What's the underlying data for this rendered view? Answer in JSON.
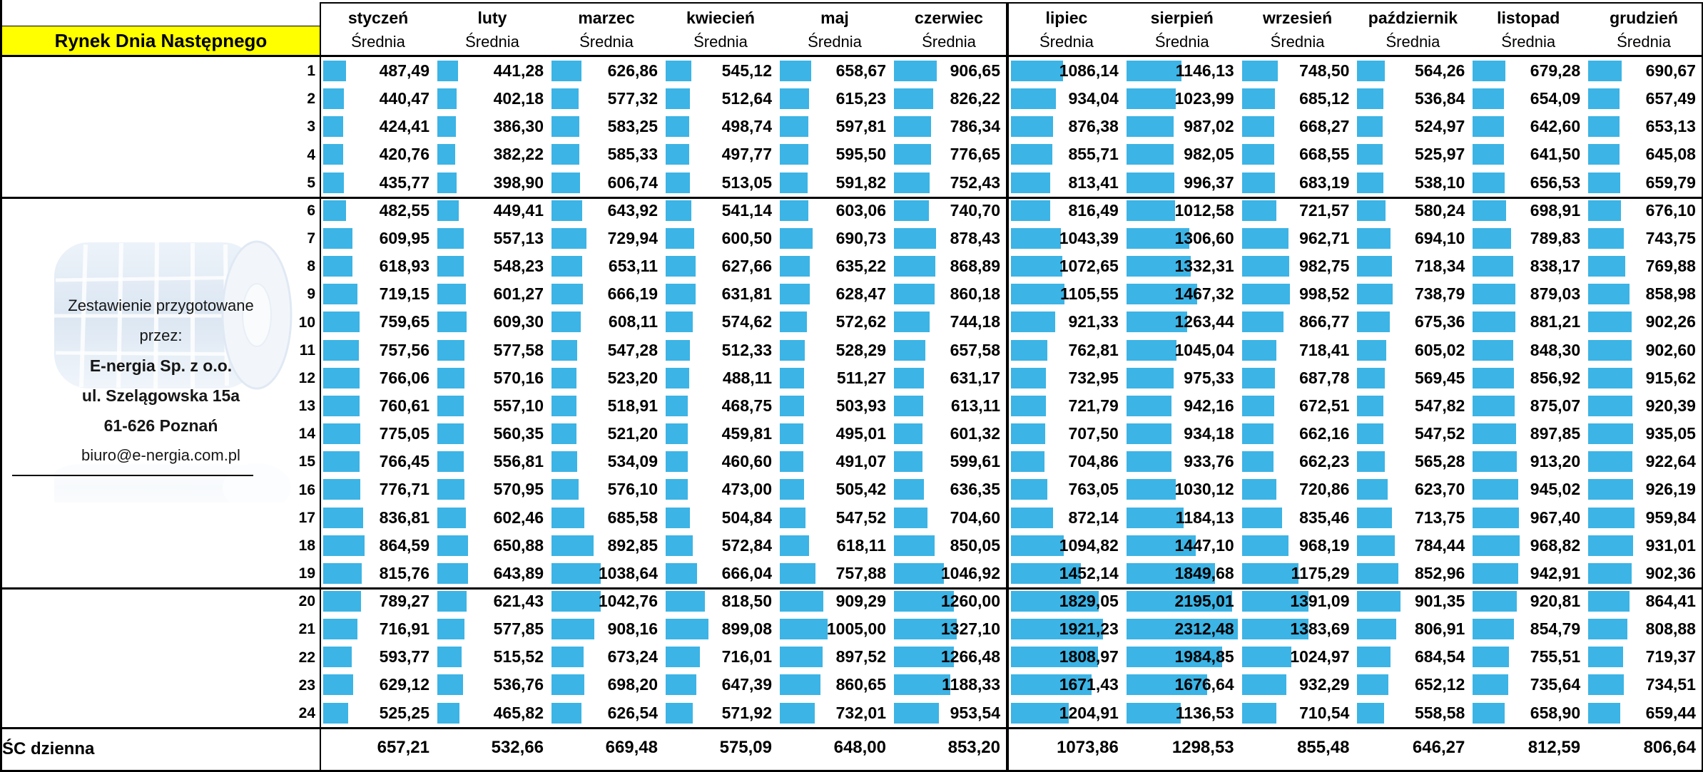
{
  "window": {
    "title_cell": "Rynek Dnia Następnego"
  },
  "left_panel": {
    "prepared_line1": "Zestawienie przygotowane",
    "prepared_line2": "przez:",
    "company_name": "E-nergia Sp. z o.o.",
    "street": "ul. Szelągowska 15a",
    "city": "61-626 Poznań",
    "email": "biuro@e-nergia.com.pl"
  },
  "table": {
    "subheader": "Średnia",
    "footer_label": "ŚC dzienna",
    "hours": [
      1,
      2,
      3,
      4,
      5,
      6,
      7,
      8,
      9,
      10,
      11,
      12,
      13,
      14,
      15,
      16,
      17,
      18,
      19,
      20,
      21,
      22,
      23,
      24
    ],
    "section_breaks_after_hours": [
      5,
      19
    ]
  },
  "colors": {
    "bar": "#3CB4E5",
    "title_bg": "#FFFF00",
    "border": "#000000"
  },
  "chart_data": {
    "type": "table",
    "title": "Rynek Dnia Następnego",
    "column_subheader": "Średnia",
    "row_header": "hour of day (1-24)",
    "hours": [
      1,
      2,
      3,
      4,
      5,
      6,
      7,
      8,
      9,
      10,
      11,
      12,
      13,
      14,
      15,
      16,
      17,
      18,
      19,
      20,
      21,
      22,
      23,
      24
    ],
    "average_row_label": "ŚC dzienna",
    "bar_style": {
      "color": "#3CB4E5",
      "scale_min": 0,
      "scale_max": 2312.48
    },
    "series": [
      {
        "name": "styczeń",
        "values": [
          487.49,
          440.47,
          424.41,
          420.76,
          435.77,
          482.55,
          609.95,
          618.93,
          719.15,
          759.65,
          757.56,
          766.06,
          760.61,
          775.05,
          766.45,
          776.71,
          836.81,
          864.59,
          815.76,
          789.27,
          716.91,
          593.77,
          629.12,
          525.25
        ],
        "average": 657.21
      },
      {
        "name": "luty",
        "values": [
          441.28,
          402.18,
          386.3,
          382.22,
          398.9,
          449.41,
          557.13,
          548.23,
          601.27,
          609.3,
          577.58,
          570.16,
          557.1,
          560.35,
          556.81,
          570.95,
          602.46,
          650.88,
          643.89,
          621.43,
          577.85,
          515.52,
          536.76,
          465.82
        ],
        "average": 532.66
      },
      {
        "name": "marzec",
        "values": [
          626.86,
          577.32,
          583.25,
          585.33,
          606.74,
          643.92,
          729.94,
          653.11,
          666.19,
          608.11,
          547.28,
          523.2,
          518.91,
          521.2,
          534.09,
          576.1,
          685.58,
          892.85,
          1038.64,
          1042.76,
          908.16,
          673.24,
          698.2,
          626.54
        ],
        "average": 669.48
      },
      {
        "name": "kwiecień",
        "values": [
          545.12,
          512.64,
          498.74,
          497.77,
          513.05,
          541.14,
          600.5,
          627.66,
          631.81,
          574.62,
          512.33,
          488.11,
          468.75,
          459.81,
          460.6,
          473.0,
          504.84,
          572.84,
          666.04,
          818.5,
          899.08,
          716.01,
          647.39,
          571.92
        ],
        "average": 575.09
      },
      {
        "name": "maj",
        "values": [
          658.67,
          615.23,
          597.81,
          595.5,
          591.82,
          603.06,
          690.73,
          635.22,
          628.47,
          572.62,
          528.29,
          511.27,
          503.93,
          495.01,
          491.07,
          505.42,
          547.52,
          618.11,
          757.88,
          909.29,
          1005.0,
          897.52,
          860.65,
          732.01
        ],
        "average": 648.0
      },
      {
        "name": "czerwiec",
        "values": [
          906.65,
          826.22,
          786.34,
          776.65,
          752.43,
          740.7,
          878.43,
          868.89,
          860.18,
          744.18,
          657.58,
          631.17,
          613.11,
          601.32,
          599.61,
          636.35,
          704.6,
          850.05,
          1046.92,
          1260.0,
          1327.1,
          1266.48,
          1188.33,
          953.54
        ],
        "average": 853.2
      },
      {
        "name": "lipiec",
        "values": [
          1086.14,
          934.04,
          876.38,
          855.71,
          813.41,
          816.49,
          1043.39,
          1072.65,
          1105.55,
          921.33,
          762.81,
          732.95,
          721.79,
          707.5,
          704.86,
          763.05,
          872.14,
          1094.82,
          1452.14,
          1829.05,
          1921.23,
          1808.97,
          1671.43,
          1204.91
        ],
        "average": 1073.86
      },
      {
        "name": "sierpień",
        "values": [
          1146.13,
          1023.99,
          987.02,
          982.05,
          996.37,
          1012.58,
          1306.6,
          1332.31,
          1467.32,
          1263.44,
          1045.04,
          975.33,
          942.16,
          934.18,
          933.76,
          1030.12,
          1184.13,
          1447.1,
          1849.68,
          2195.01,
          2312.48,
          1984.85,
          1676.64,
          1136.53
        ],
        "average": 1298.53
      },
      {
        "name": "wrzesień",
        "values": [
          748.5,
          685.12,
          668.27,
          668.55,
          683.19,
          721.57,
          962.71,
          982.75,
          998.52,
          866.77,
          718.41,
          687.78,
          672.51,
          662.16,
          662.23,
          720.86,
          835.46,
          968.19,
          1175.29,
          1391.09,
          1383.69,
          1024.97,
          932.29,
          710.54
        ],
        "average": 855.48
      },
      {
        "name": "październik",
        "values": [
          564.26,
          536.84,
          524.97,
          525.97,
          538.1,
          580.24,
          694.1,
          718.34,
          738.79,
          675.36,
          605.02,
          569.45,
          547.82,
          547.52,
          565.28,
          623.7,
          713.75,
          784.44,
          852.96,
          901.35,
          806.91,
          684.54,
          652.12,
          558.58
        ],
        "average": 646.27
      },
      {
        "name": "listopad",
        "values": [
          679.28,
          654.09,
          642.6,
          641.5,
          656.53,
          698.91,
          789.83,
          838.17,
          879.03,
          881.21,
          848.3,
          856.92,
          875.07,
          897.85,
          913.2,
          945.02,
          967.4,
          968.82,
          942.91,
          920.81,
          854.79,
          755.51,
          735.64,
          658.9
        ],
        "average": 812.59
      },
      {
        "name": "grudzień",
        "values": [
          690.67,
          657.49,
          653.13,
          645.08,
          659.79,
          676.1,
          743.75,
          769.88,
          858.98,
          902.26,
          902.6,
          915.62,
          920.39,
          935.05,
          922.64,
          926.19,
          959.84,
          931.01,
          902.36,
          864.41,
          808.88,
          719.37,
          734.51,
          659.44
        ],
        "average": 806.64
      }
    ]
  }
}
